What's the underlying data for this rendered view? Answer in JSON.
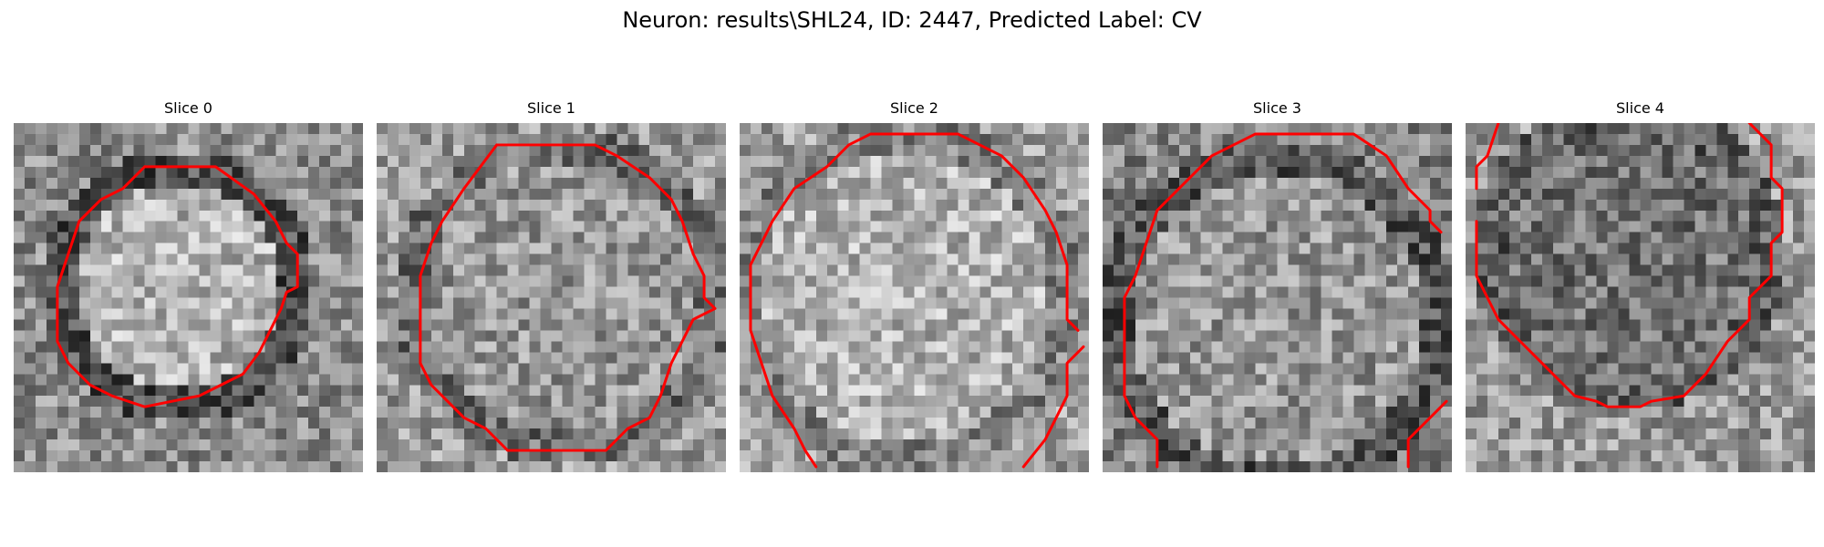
{
  "title": "Neuron: results\\SHL24, ID: 2447, Predicted Label: CV",
  "colors": {
    "contour": "#ff0000",
    "background": "#ffffff"
  },
  "slices": [
    {
      "label": "Slice 0"
    },
    {
      "label": "Slice 1"
    },
    {
      "label": "Slice 2"
    },
    {
      "label": "Slice 3"
    },
    {
      "label": "Slice 4"
    }
  ]
}
